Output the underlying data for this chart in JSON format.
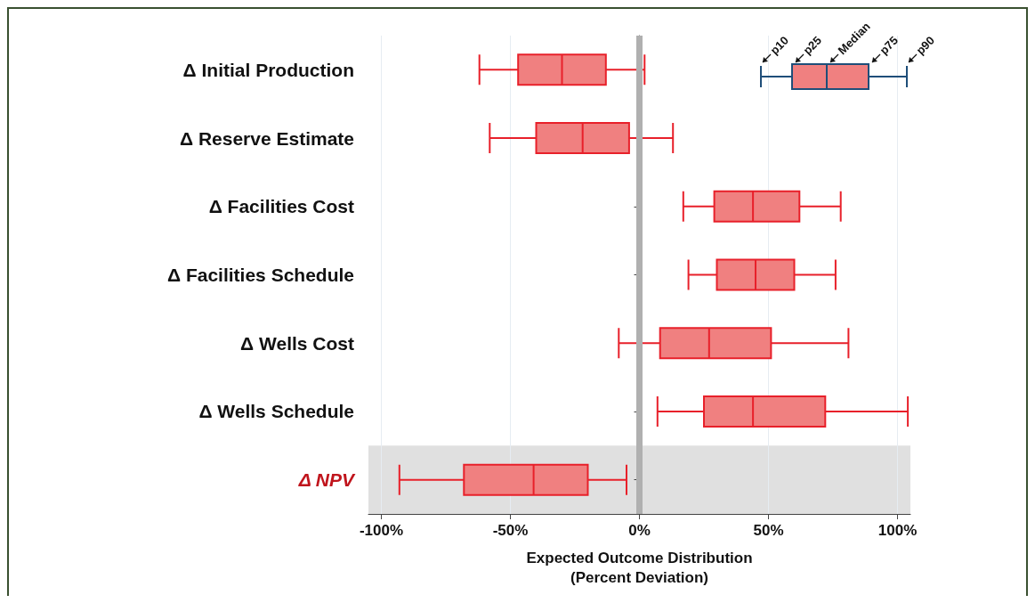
{
  "chart_data": {
    "type": "box",
    "categories": [
      "Δ Initial Production",
      "Δ Reserve Estimate",
      "Δ Facilities Cost",
      "Δ Facilities Schedule",
      "Δ Wells Cost",
      "Δ Wells Schedule",
      "Δ NPV"
    ],
    "orientation": "horizontal",
    "color": "#e8202a",
    "boxes": [
      {
        "low": -62,
        "q1": -47,
        "median": -30,
        "q3": -13,
        "high": 2
      },
      {
        "low": -58,
        "q1": -40,
        "median": -22,
        "q3": -4,
        "high": 13
      },
      {
        "low": 17,
        "q1": 29,
        "median": 44,
        "q3": 62,
        "high": 78
      },
      {
        "low": 19,
        "q1": 30,
        "median": 45,
        "q3": 60,
        "high": 76
      },
      {
        "low": -8,
        "q1": 8,
        "median": 27,
        "q3": 51,
        "high": 81
      },
      {
        "low": 7,
        "q1": 25,
        "median": 44,
        "q3": 72,
        "high": 104
      },
      {
        "low": -93,
        "q1": -68,
        "median": -41,
        "q3": -20,
        "high": -5
      }
    ],
    "xlabel": "Expected Outcome Distribution\n(Percent Deviation)",
    "xlim": [
      -105,
      105
    ],
    "xticks": [
      {
        "value": -100,
        "label": "-100%"
      },
      {
        "value": -50,
        "label": "-50%"
      },
      {
        "value": 0,
        "label": "0%"
      },
      {
        "value": 50,
        "label": "50%"
      },
      {
        "value": 100,
        "label": "100%"
      }
    ],
    "grid": "x",
    "ref_lines": [
      {
        "axis": "x",
        "value": 0,
        "color": "#b0b0b0"
      }
    ],
    "bands": [
      {
        "axis": "y",
        "from": "Δ NPV",
        "to": "Δ NPV",
        "color": "#e0e0e0"
      }
    ],
    "annotations": [
      "p10",
      "p25",
      "Median",
      "p75",
      "p90"
    ]
  }
}
